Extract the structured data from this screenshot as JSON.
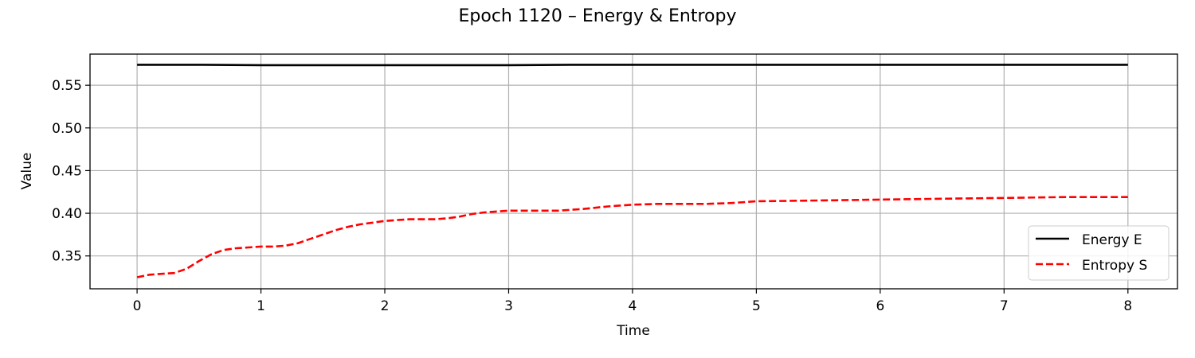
{
  "chart_data": {
    "type": "line",
    "title": "Epoch 1120 – Energy & Entropy",
    "xlabel": "Time",
    "ylabel": "Value",
    "xlim": [
      -0.38,
      8.4
    ],
    "ylim": [
      0.3115,
      0.5865
    ],
    "xticks": [
      0,
      1,
      2,
      3,
      4,
      5,
      6,
      7,
      8
    ],
    "xtick_labels": [
      "0",
      "1",
      "2",
      "3",
      "4",
      "5",
      "6",
      "7",
      "8"
    ],
    "yticks": [
      0.35,
      0.4,
      0.45,
      0.5,
      0.55
    ],
    "ytick_labels": [
      "0.35",
      "0.40",
      "0.45",
      "0.50",
      "0.55"
    ],
    "grid": true,
    "legend_position": "lower-right",
    "series": [
      {
        "name": "Energy E",
        "color": "#000000",
        "style": "solid",
        "x": [
          0,
          0.5,
          1.0,
          1.5,
          2.0,
          2.5,
          3.0,
          3.5,
          4.0,
          4.5,
          5.0,
          5.5,
          6.0,
          6.5,
          7.0,
          7.5,
          8.0
        ],
        "y": [
          0.574,
          0.574,
          0.5735,
          0.5735,
          0.5735,
          0.5735,
          0.5735,
          0.574,
          0.574,
          0.574,
          0.574,
          0.574,
          0.574,
          0.574,
          0.574,
          0.574,
          0.574
        ]
      },
      {
        "name": "Entropy S",
        "color": "#ff0000",
        "style": "dashed",
        "x": [
          0,
          0.1,
          0.2,
          0.3,
          0.4,
          0.5,
          0.6,
          0.7,
          0.8,
          0.9,
          1.0,
          1.1,
          1.2,
          1.3,
          1.4,
          1.5,
          1.6,
          1.7,
          1.8,
          1.9,
          2.0,
          2.1,
          2.2,
          2.3,
          2.4,
          2.5,
          2.6,
          2.7,
          2.8,
          2.9,
          3.0,
          3.2,
          3.4,
          3.6,
          3.8,
          4.0,
          4.2,
          4.4,
          4.6,
          4.8,
          5.0,
          5.5,
          6.0,
          6.5,
          7.0,
          7.5,
          8.0
        ],
        "y": [
          0.325,
          0.328,
          0.329,
          0.33,
          0.335,
          0.344,
          0.352,
          0.357,
          0.359,
          0.36,
          0.361,
          0.361,
          0.362,
          0.365,
          0.37,
          0.375,
          0.38,
          0.384,
          0.387,
          0.389,
          0.391,
          0.392,
          0.393,
          0.393,
          0.393,
          0.394,
          0.396,
          0.399,
          0.401,
          0.402,
          0.403,
          0.403,
          0.403,
          0.405,
          0.408,
          0.41,
          0.411,
          0.411,
          0.411,
          0.412,
          0.414,
          0.415,
          0.416,
          0.417,
          0.418,
          0.419,
          0.419
        ]
      }
    ]
  }
}
